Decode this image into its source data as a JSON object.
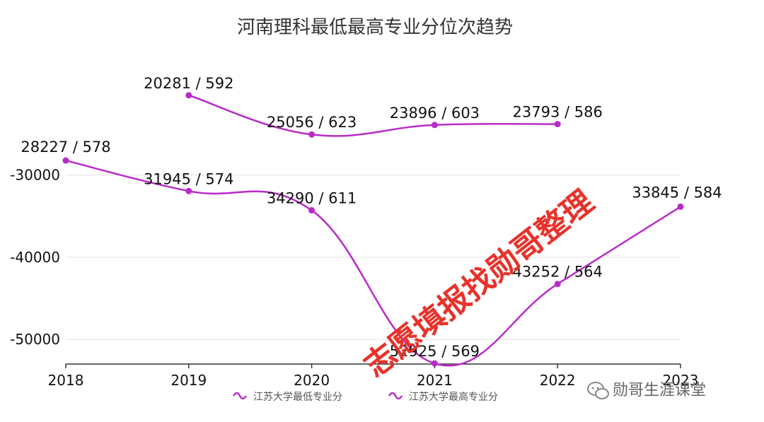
{
  "chart_data": {
    "type": "line",
    "title": "河南理科最低最高专业分位次趋势",
    "categories": [
      "2018",
      "2019",
      "2020",
      "2021",
      "2022",
      "2023"
    ],
    "y_ticks": [
      "-30000",
      "-40000",
      "-50000"
    ],
    "y_tick_values": [
      -30000,
      -40000,
      -50000
    ],
    "ylim": [
      -53000,
      -16000
    ],
    "grid": true,
    "legend_position": "bottom",
    "series": [
      {
        "name": "江苏大学最低专业分",
        "color": "#b92bc9",
        "values": [
          -28227,
          -31945,
          -34290,
          -52925,
          -43252,
          -33845
        ],
        "labels": [
          "28227 / 578",
          "31945 / 574",
          "34290 / 611",
          "52925 / 569",
          "43252 / 564",
          "33845 / 584"
        ]
      },
      {
        "name": "江苏大学最高专业分",
        "color": "#b92bc9",
        "values": [
          null,
          -20281,
          -25056,
          -23896,
          -23793,
          null
        ],
        "labels": [
          null,
          "20281 / 592",
          "25056 / 623",
          "23896 / 603",
          "23793 / 586",
          null
        ]
      }
    ]
  },
  "watermark": "志愿填报找勋哥整理",
  "brand": {
    "icon": "wechat-icon",
    "text": "勋哥生涯课堂"
  }
}
